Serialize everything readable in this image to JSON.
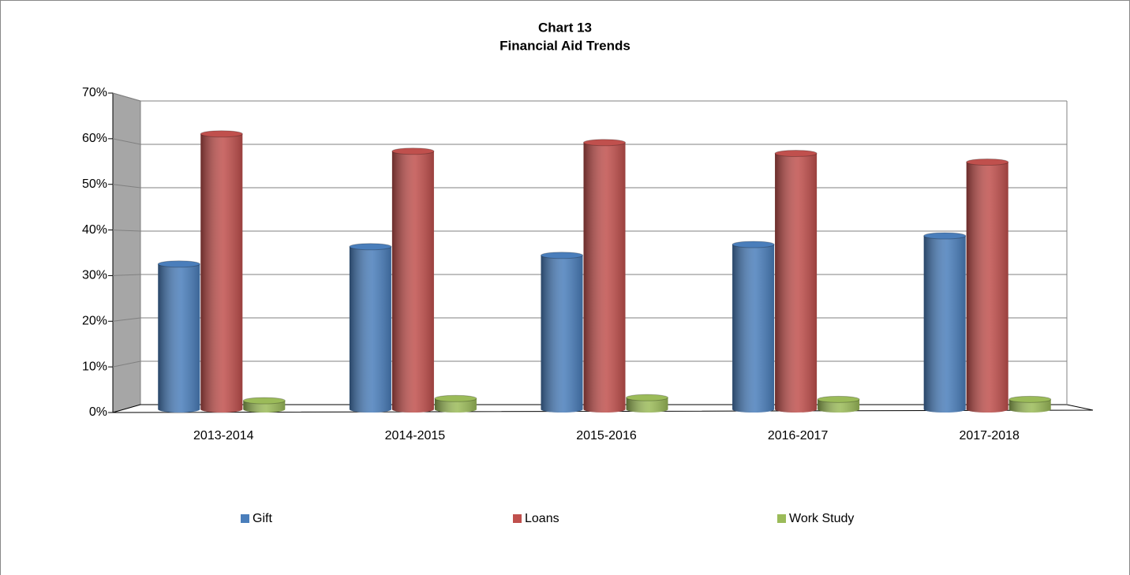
{
  "chart_data": {
    "type": "bar",
    "title": "Chart 13",
    "subtitle": "Financial Aid Trends",
    "categories": [
      "2013-2014",
      "2014-2015",
      "2015-2016",
      "2016-2017",
      "2017-2018"
    ],
    "series": [
      {
        "name": "Gift",
        "color": "#4a7ebb",
        "values": [
          33.5,
          37.5,
          35.5,
          38,
          40
        ]
      },
      {
        "name": "Loans",
        "color": "#c0504d",
        "values": [
          63.5,
          59.5,
          61.5,
          59,
          57
        ]
      },
      {
        "name": "Work Study",
        "color": "#9bbb59",
        "values": [
          2,
          2.5,
          2.7,
          2.3,
          2.3
        ]
      }
    ],
    "ylim": [
      0,
      70
    ],
    "yticks": [
      {
        "value": 0,
        "label": "0%"
      },
      {
        "value": 10,
        "label": "10%"
      },
      {
        "value": 20,
        "label": "20%"
      },
      {
        "value": 30,
        "label": "30%"
      },
      {
        "value": 40,
        "label": "40%"
      },
      {
        "value": 50,
        "label": "50%"
      },
      {
        "value": 60,
        "label": "60%"
      },
      {
        "value": 70,
        "label": "70%"
      }
    ],
    "grid": true,
    "legend": "bottom"
  }
}
